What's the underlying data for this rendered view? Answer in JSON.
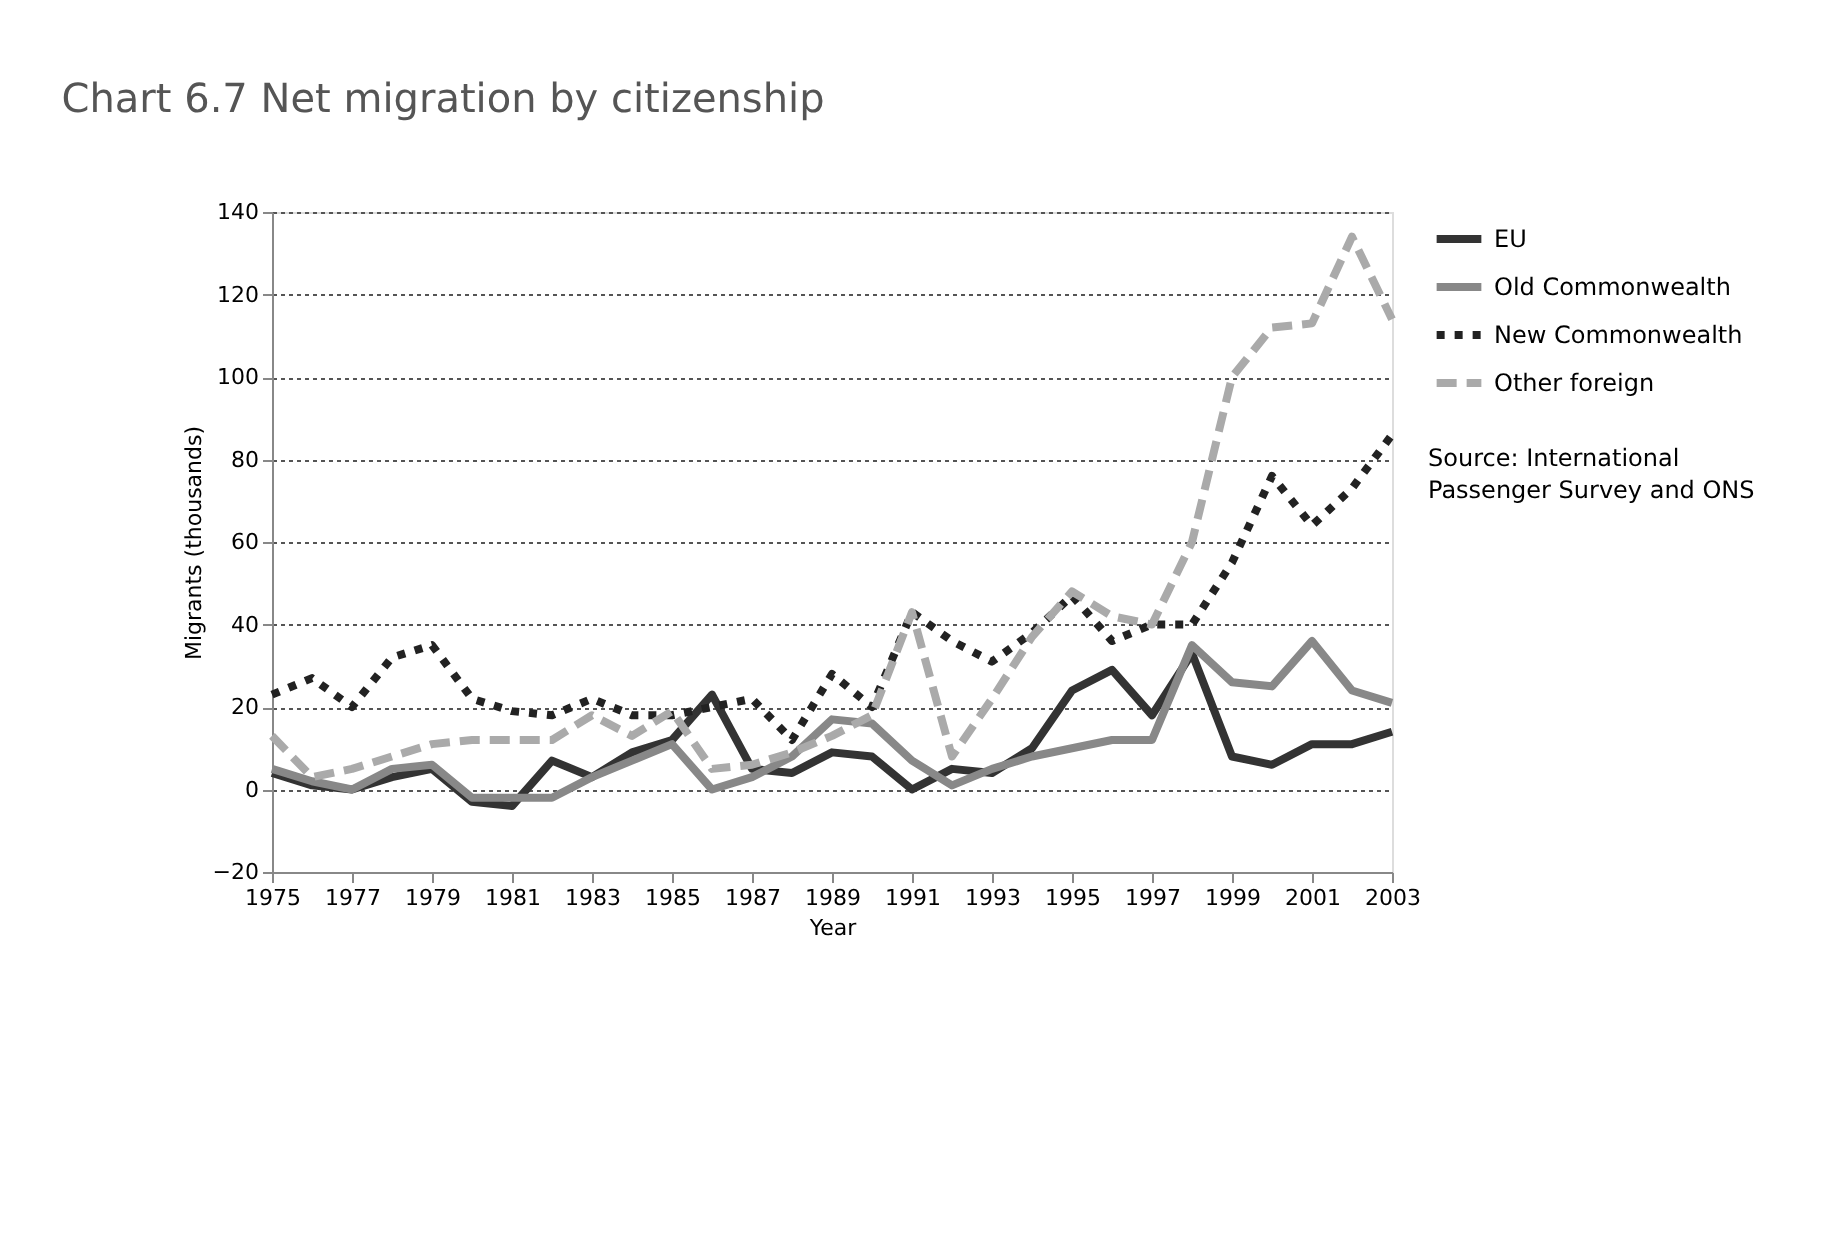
{
  "chart_data": {
    "type": "line",
    "title": "Chart 6.7 Net migration by citizenship",
    "xlabel": "Year",
    "ylabel": "Migrants (thousands)",
    "x": [
      1975,
      1976,
      1977,
      1978,
      1979,
      1980,
      1981,
      1982,
      1983,
      1984,
      1985,
      1986,
      1987,
      1988,
      1989,
      1990,
      1991,
      1992,
      1993,
      1994,
      1995,
      1996,
      1997,
      1998,
      1999,
      2000,
      2001,
      2002,
      2003
    ],
    "series": [
      {
        "name": "EU",
        "color": "#333333",
        "line_style": "solid",
        "values": [
          4,
          1,
          0,
          3,
          5,
          -3,
          -4,
          7,
          3,
          9,
          12,
          23,
          5,
          4,
          9,
          8,
          0,
          5,
          4,
          10,
          24,
          29,
          18,
          33,
          8,
          6,
          11,
          11,
          14
        ]
      },
      {
        "name": "Old Commonwealth",
        "color": "#888888",
        "line_style": "solid",
        "values": [
          5,
          2,
          0,
          5,
          6,
          -2,
          -2,
          -2,
          3,
          7,
          11,
          0,
          3,
          8,
          17,
          16,
          7,
          1,
          5,
          8,
          10,
          12,
          12,
          35,
          26,
          25,
          36,
          24,
          21
        ]
      },
      {
        "name": "New Commonwealth",
        "color": "#222222",
        "line_style": "dotted",
        "values": [
          23,
          27,
          20,
          32,
          35,
          22,
          19,
          18,
          22,
          18,
          18,
          20,
          22,
          12,
          28,
          20,
          43,
          36,
          31,
          38,
          47,
          36,
          40,
          40,
          55,
          76,
          64,
          73,
          86
        ]
      },
      {
        "name": "Other foreign",
        "color": "#aaaaaa",
        "line_style": "dashed",
        "values": [
          13,
          3,
          5,
          8,
          11,
          12,
          12,
          12,
          18,
          13,
          19,
          5,
          6,
          9,
          13,
          18,
          43,
          8,
          22,
          37,
          48,
          42,
          40,
          60,
          100,
          112,
          113,
          134,
          114
        ]
      }
    ],
    "xlim": [
      1975,
      2003
    ],
    "xticks": [
      1975,
      1977,
      1979,
      1981,
      1983,
      1985,
      1987,
      1989,
      1991,
      1993,
      1995,
      1997,
      1999,
      2001,
      2003
    ],
    "ylim": [
      -20,
      140
    ],
    "yticks": [
      -20,
      0,
      20,
      40,
      60,
      80,
      100,
      120,
      140
    ],
    "grid": "y",
    "legend": "right",
    "marker": "none",
    "annotations": [
      "Source: International Passenger Survey and ONS"
    ]
  }
}
